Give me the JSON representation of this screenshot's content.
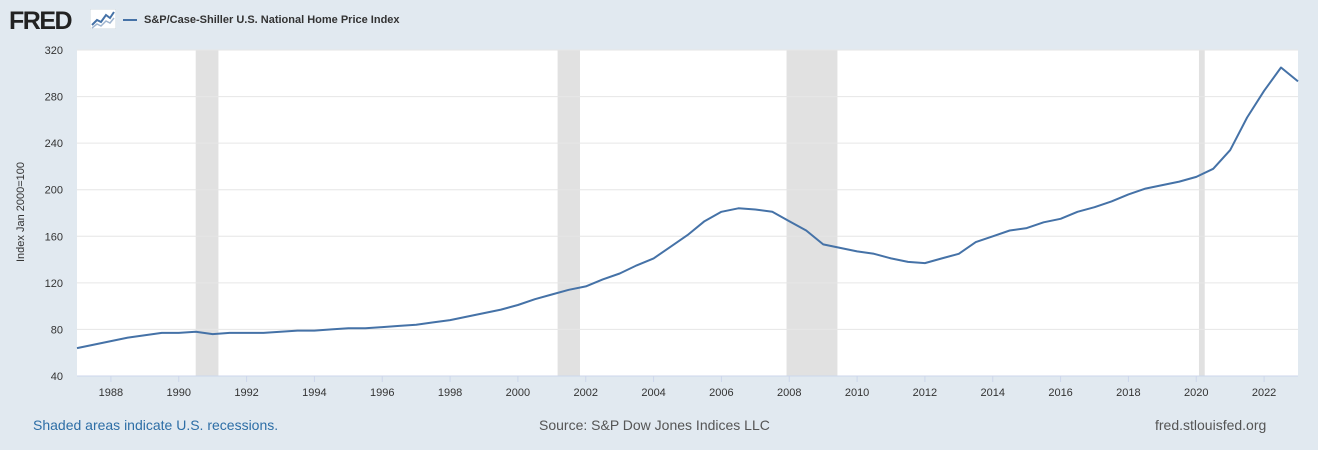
{
  "header": {
    "logo_text": "FRED",
    "logo_icon": "chart-line-icon",
    "legend_label": "S&P/Case-Shiller U.S. National Home Price Index"
  },
  "footer": {
    "left": "Shaded areas indicate U.S. recessions.",
    "center": "Source: S&P Dow Jones Indices LLC",
    "right": "fred.stlouisfed.org"
  },
  "colors": {
    "series": "#4572a7",
    "recession": "#e1e1e1",
    "background": "#e1e9f0",
    "plot_background": "#ffffff"
  },
  "chart_data": {
    "type": "line",
    "title": "",
    "ylabel": "Index Jan 2000=100",
    "xlabel": "",
    "ylim": [
      40,
      320
    ],
    "xlim": [
      1987.0,
      2023.0
    ],
    "yticks": [
      40,
      80,
      120,
      160,
      200,
      240,
      280,
      320
    ],
    "xticks": [
      1988,
      1990,
      1992,
      1994,
      1996,
      1998,
      2000,
      2002,
      2004,
      2006,
      2008,
      2010,
      2012,
      2014,
      2016,
      2018,
      2020,
      2022
    ],
    "grid": true,
    "legend_position": "top-left",
    "recessions": [
      [
        1990.5,
        1991.17
      ],
      [
        2001.17,
        2001.83
      ],
      [
        2007.92,
        2009.42
      ],
      [
        2020.08,
        2020.25
      ]
    ],
    "series": [
      {
        "name": "S&P/Case-Shiller U.S. National Home Price Index",
        "x": [
          1987.0,
          1987.5,
          1988.0,
          1988.5,
          1989.0,
          1989.5,
          1990.0,
          1990.5,
          1991.0,
          1991.5,
          1992.0,
          1992.5,
          1993.0,
          1993.5,
          1994.0,
          1994.5,
          1995.0,
          1995.5,
          1996.0,
          1996.5,
          1997.0,
          1997.5,
          1998.0,
          1998.5,
          1999.0,
          1999.5,
          2000.0,
          2000.5,
          2001.0,
          2001.5,
          2002.0,
          2002.5,
          2003.0,
          2003.5,
          2004.0,
          2004.5,
          2005.0,
          2005.5,
          2006.0,
          2006.5,
          2007.0,
          2007.5,
          2008.0,
          2008.5,
          2009.0,
          2009.5,
          2010.0,
          2010.5,
          2011.0,
          2011.5,
          2012.0,
          2012.5,
          2013.0,
          2013.5,
          2014.0,
          2014.5,
          2015.0,
          2015.5,
          2016.0,
          2016.5,
          2017.0,
          2017.5,
          2018.0,
          2018.5,
          2019.0,
          2019.5,
          2020.0,
          2020.5,
          2021.0,
          2021.5,
          2022.0,
          2022.5,
          2023.0
        ],
        "values": [
          64,
          67,
          70,
          73,
          75,
          77,
          77,
          78,
          76,
          77,
          77,
          77,
          78,
          79,
          79,
          80,
          81,
          81,
          82,
          83,
          84,
          86,
          88,
          91,
          94,
          97,
          101,
          106,
          110,
          114,
          117,
          123,
          128,
          135,
          141,
          151,
          161,
          173,
          181,
          184,
          183,
          181,
          173,
          165,
          153,
          150,
          147,
          145,
          141,
          138,
          137,
          141,
          145,
          155,
          160,
          165,
          167,
          172,
          175,
          181,
          185,
          190,
          196,
          201,
          204,
          207,
          211,
          218,
          234,
          262,
          285,
          305,
          293
        ]
      }
    ]
  }
}
